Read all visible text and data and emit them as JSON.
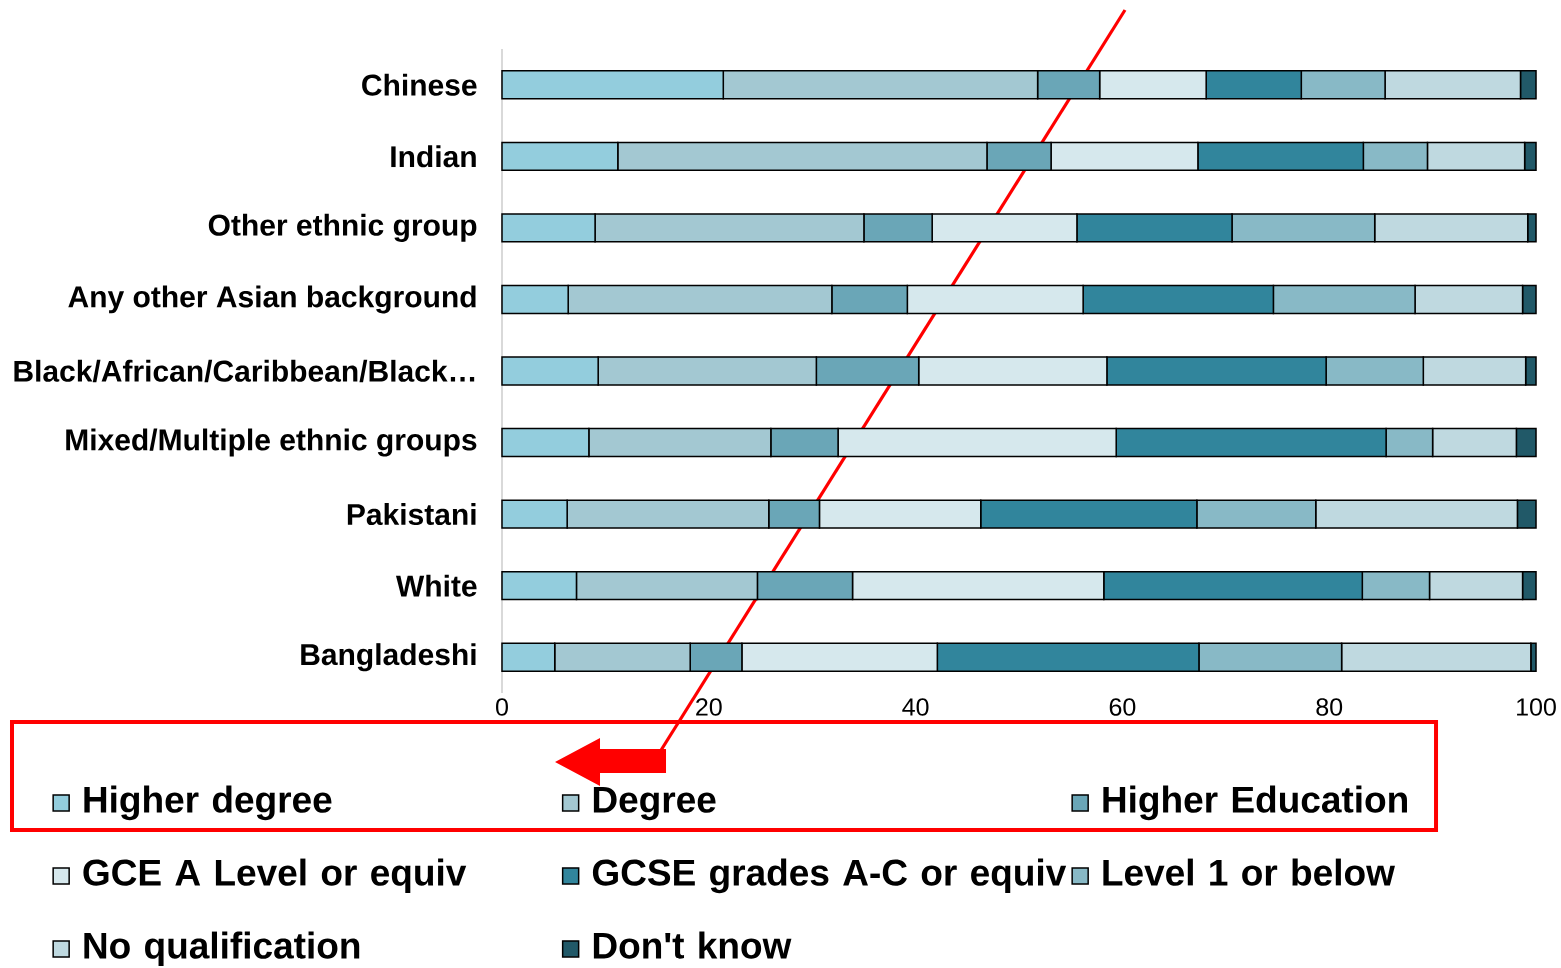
{
  "chart_data": {
    "type": "bar",
    "orientation": "horizontal",
    "stacked": true,
    "legend": "bottom",
    "categories": [
      "Chinese",
      "Indian",
      "Other ethnic group",
      "Any other Asian background",
      "Black/African/Caribbean/Black…",
      "Mixed/Multiple ethnic groups",
      "Pakistani",
      "White",
      "Bangladeshi"
    ],
    "series": [
      {
        "name": "Higher degree",
        "color": "#93cddd",
        "values": [
          21.4,
          11.2,
          9.0,
          6.4,
          9.3,
          8.4,
          6.3,
          7.2,
          5.1
        ]
      },
      {
        "name": "Degree",
        "color": "#a3c8d2",
        "values": [
          30.4,
          35.7,
          26.0,
          25.5,
          21.1,
          17.6,
          19.5,
          17.5,
          13.1
        ]
      },
      {
        "name": "Higher Education",
        "color": "#6aa6b7",
        "values": [
          6.0,
          6.2,
          6.6,
          7.3,
          9.9,
          6.5,
          4.9,
          9.2,
          5.0
        ]
      },
      {
        "name": "GCE A Level or equiv",
        "color": "#d6e8ed",
        "values": [
          10.3,
          14.2,
          14.0,
          17.0,
          18.2,
          26.9,
          15.6,
          24.3,
          18.9
        ]
      },
      {
        "name": "GCSE grades A-C or equiv",
        "color": "#31859c",
        "values": [
          9.2,
          16.0,
          15.0,
          18.4,
          21.2,
          26.1,
          20.9,
          25.0,
          25.3
        ]
      },
      {
        "name": "Level 1 or below",
        "color": "#88b9c6",
        "values": [
          8.1,
          6.2,
          13.8,
          13.7,
          9.4,
          4.5,
          11.5,
          6.5,
          13.8
        ]
      },
      {
        "name": "No qualification",
        "color": "#bfd9e0",
        "values": [
          13.1,
          9.4,
          14.8,
          10.4,
          9.9,
          8.1,
          19.5,
          9.0,
          18.3
        ]
      },
      {
        "name": "Don't know",
        "color": "#215968",
        "values": [
          1.5,
          1.1,
          0.8,
          1.3,
          1.0,
          1.9,
          1.8,
          1.3,
          0.5
        ]
      }
    ],
    "xlim": [
      0,
      100
    ],
    "xticks": [
      0,
      20,
      40,
      60,
      80,
      100
    ]
  }
}
